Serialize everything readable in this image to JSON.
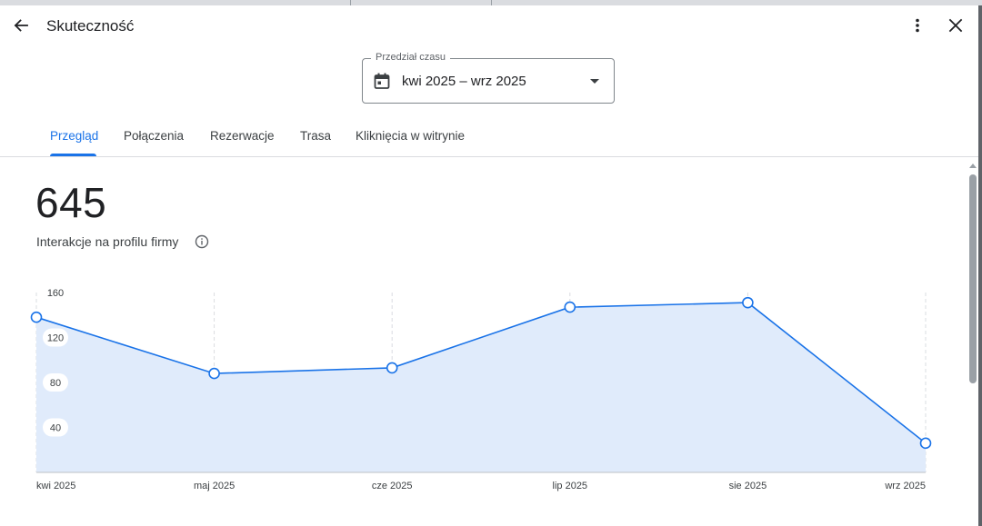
{
  "header": {
    "title": "Skuteczność",
    "back_icon": "arrow-back-icon",
    "more_icon": "more-vert-icon",
    "close_icon": "close-icon"
  },
  "date_range": {
    "legend": "Przedział czasu",
    "value": "kwi 2025 – wrz 2025",
    "icon": "calendar-icon",
    "caret_icon": "arrow-drop-down-icon"
  },
  "tabs": [
    {
      "label": "Przegląd",
      "active": true
    },
    {
      "label": "Połączenia",
      "active": false
    },
    {
      "label": "Rezerwacje",
      "active": false
    },
    {
      "label": "Trasa",
      "active": false
    },
    {
      "label": "Kliknięcia w witrynie",
      "active": false
    }
  ],
  "summary": {
    "total": "645",
    "label": "Interakcje na profilu firmy",
    "info_icon": "info-icon"
  },
  "colors": {
    "accent": "#1a73e8",
    "area_fill": "#e0ebfb",
    "text": "#202124"
  },
  "chart_data": {
    "type": "area",
    "categories": [
      "kwi 2025",
      "maj 2025",
      "cze 2025",
      "lip 2025",
      "sie 2025",
      "wrz 2025"
    ],
    "values": [
      138,
      88,
      93,
      147,
      151,
      26
    ],
    "y_ticks": [
      "40",
      "80",
      "120",
      "160"
    ],
    "ylim": [
      0,
      160
    ],
    "grid": "vertical-dashed",
    "xlabel": "",
    "ylabel": ""
  }
}
